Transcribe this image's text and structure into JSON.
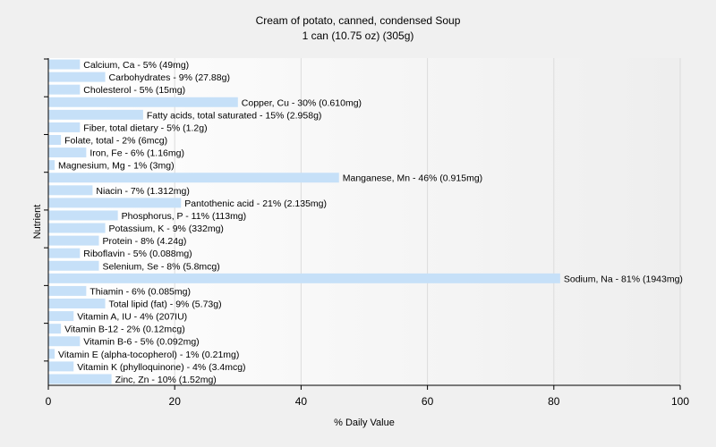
{
  "chart_data": {
    "type": "bar",
    "orientation": "horizontal",
    "title": "Cream of potato, canned, condensed Soup",
    "subtitle": "1 can (10.75 oz) (305g)",
    "xlabel": "% Daily Value",
    "ylabel": "Nutrient",
    "xlim": [
      0,
      100
    ],
    "xticks": [
      0,
      20,
      40,
      60,
      80,
      100
    ],
    "grid": true,
    "bar_color": "#c6e0f8",
    "categories": [
      "Calcium, Ca",
      "Carbohydrates",
      "Cholesterol",
      "Copper, Cu",
      "Fatty acids, total saturated",
      "Fiber, total dietary",
      "Folate, total",
      "Iron, Fe",
      "Magnesium, Mg",
      "Manganese, Mn",
      "Niacin",
      "Pantothenic acid",
      "Phosphorus, P",
      "Potassium, K",
      "Protein",
      "Riboflavin",
      "Selenium, Se",
      "Sodium, Na",
      "Thiamin",
      "Total lipid (fat)",
      "Vitamin A, IU",
      "Vitamin B-12",
      "Vitamin B-6",
      "Vitamin E (alpha-tocopherol)",
      "Vitamin K (phylloquinone)",
      "Zinc, Zn"
    ],
    "values": [
      5,
      9,
      5,
      30,
      15,
      5,
      2,
      6,
      1,
      46,
      7,
      21,
      11,
      9,
      8,
      5,
      8,
      81,
      6,
      9,
      4,
      2,
      5,
      1,
      4,
      10
    ],
    "labels": [
      "Calcium, Ca - 5% (49mg)",
      "Carbohydrates - 9% (27.88g)",
      "Cholesterol - 5% (15mg)",
      "Copper, Cu - 30% (0.610mg)",
      "Fatty acids, total saturated - 15% (2.958g)",
      "Fiber, total dietary - 5% (1.2g)",
      "Folate, total - 2% (6mcg)",
      "Iron, Fe - 6% (1.16mg)",
      "Magnesium, Mg - 1% (3mg)",
      "Manganese, Mn - 46% (0.915mg)",
      "Niacin - 7% (1.312mg)",
      "Pantothenic acid - 21% (2.135mg)",
      "Phosphorus, P - 11% (113mg)",
      "Potassium, K - 9% (332mg)",
      "Protein - 8% (4.24g)",
      "Riboflavin - 5% (0.088mg)",
      "Selenium, Se - 8% (5.8mcg)",
      "Sodium, Na - 81% (1943mg)",
      "Thiamin - 6% (0.085mg)",
      "Total lipid (fat) - 9% (5.73g)",
      "Vitamin A, IU - 4% (207IU)",
      "Vitamin B-12 - 2% (0.12mcg)",
      "Vitamin B-6 - 5% (0.092mg)",
      "Vitamin E (alpha-tocopherol) - 1% (0.21mg)",
      "Vitamin K (phylloquinone) - 4% (3.4mcg)",
      "Zinc, Zn - 10% (1.52mg)"
    ]
  }
}
